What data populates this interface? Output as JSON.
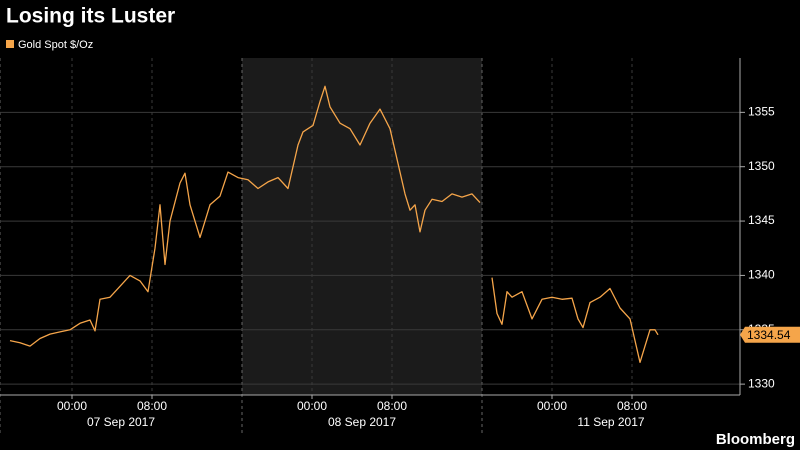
{
  "chart_data": {
    "type": "line",
    "title": "Losing its Luster",
    "source": "Bloomberg",
    "x": [
      1,
      2,
      3,
      4,
      5,
      6,
      7,
      8,
      9,
      9.5,
      10,
      11,
      12,
      13,
      14,
      14.8,
      15.5,
      16,
      16.5,
      17,
      18,
      18.5,
      19,
      20,
      21,
      22,
      22.8,
      23.8,
      24.8,
      25.8,
      26.8,
      27.8,
      28.8,
      29.8,
      30.3,
      31.3,
      32,
      32.5,
      33,
      34,
      35,
      36,
      37,
      38,
      39,
      40,
      40.5,
      41,
      41.5,
      42,
      42.5,
      43.2,
      44.2,
      45.2,
      46.2,
      47.2,
      48,
      48.6,
      49.2,
      49.7,
      50.2,
      50.7,
      51.2,
      52.2,
      53.2,
      54.2,
      55.2,
      56.2,
      57.2,
      57.8,
      58.3,
      59,
      60,
      61,
      62,
      63,
      63.5,
      64,
      64.5,
      65,
      65.5,
      65.8
    ],
    "series": [
      {
        "name": "Gold Spot $/Oz",
        "color": "#f5a54a",
        "values": [
          1334.0,
          1333.8,
          1333.5,
          1334.2,
          1334.6,
          1334.8,
          1335.0,
          1335.6,
          1335.9,
          1334.9,
          1337.8,
          1338.0,
          1339.0,
          1340.0,
          1339.5,
          1338.5,
          1342.5,
          1346.5,
          1341.0,
          1345.0,
          1348.5,
          1349.4,
          1346.5,
          1343.5,
          1346.5,
          1347.3,
          1349.5,
          1349.0,
          1348.8,
          1348.0,
          1348.6,
          1349.0,
          1348.0,
          1352.0,
          1353.2,
          1353.8,
          1356.0,
          1357.4,
          1355.5,
          1354.0,
          1353.5,
          1352.0,
          1354.0,
          1355.3,
          1353.5,
          1349.5,
          1347.5,
          1346.0,
          1346.5,
          1344.0,
          1346.0,
          1347.0,
          1346.8,
          1347.5,
          1347.2,
          1347.5,
          1346.7,
          null,
          1339.8,
          1336.5,
          1335.5,
          1338.5,
          1338.0,
          1338.5,
          1336.0,
          1337.8,
          1338.0,
          1337.8,
          1337.9,
          1336.0,
          1335.2,
          1337.5,
          1338.0,
          1338.8,
          1337.0,
          1336.0,
          1334.0,
          1332.0,
          1333.5,
          1335.0,
          1335.0,
          1334.54
        ]
      }
    ],
    "last_value": 1334.54,
    "xlim": [
      0,
      74
    ],
    "xticks": [
      {
        "value": 7.2,
        "label": "00:00"
      },
      {
        "value": 15.2,
        "label": "08:00"
      },
      {
        "value": 31.2,
        "label": "00:00"
      },
      {
        "value": 39.2,
        "label": "08:00"
      },
      {
        "value": 55.2,
        "label": "00:00"
      },
      {
        "value": 63.2,
        "label": "08:00"
      }
    ],
    "sessions": [
      {
        "label": "07 Sep 2017",
        "range": [
          0,
          24.2
        ],
        "shaded": false
      },
      {
        "label": "08 Sep 2017",
        "range": [
          24.2,
          48.2
        ],
        "shaded": true
      },
      {
        "label": "11 Sep 2017",
        "range": [
          48.2,
          74
        ],
        "shaded": false
      }
    ],
    "ylim": [
      1329,
      1360
    ],
    "yticks": [
      1330,
      1335,
      1340,
      1345,
      1350,
      1355
    ],
    "y_axis_side": "right",
    "grid": true
  }
}
